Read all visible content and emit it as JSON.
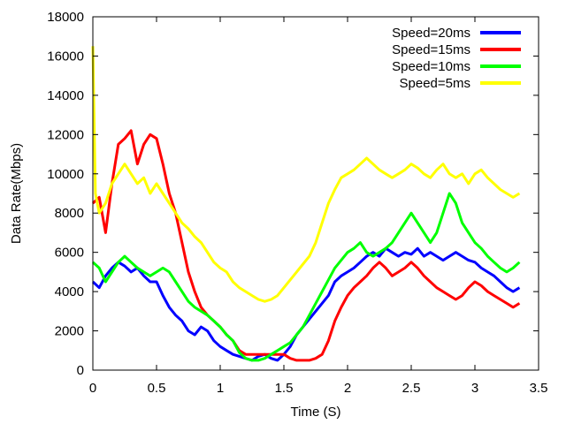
{
  "chart_data": {
    "type": "line",
    "title": "",
    "xlabel": "Time (S)",
    "ylabel": "Data Rate(Mbps)",
    "xlim": [
      0,
      3.5
    ],
    "ylim": [
      0,
      18000
    ],
    "x_ticks": [
      "0",
      "0.5",
      "1",
      "1.5",
      "2",
      "2.5",
      "3",
      "3.5"
    ],
    "y_ticks": [
      "0",
      "2000",
      "4000",
      "6000",
      "8000",
      "10000",
      "12000",
      "14000",
      "16000",
      "18000"
    ],
    "grid": false,
    "legend_position": "top-right",
    "series": [
      {
        "name": "Speed=20ms",
        "color": "#0000ff",
        "x": [
          0.0,
          0.05,
          0.1,
          0.15,
          0.2,
          0.25,
          0.3,
          0.35,
          0.4,
          0.45,
          0.5,
          0.55,
          0.6,
          0.65,
          0.7,
          0.75,
          0.8,
          0.85,
          0.9,
          0.95,
          1.0,
          1.05,
          1.1,
          1.15,
          1.2,
          1.25,
          1.3,
          1.35,
          1.4,
          1.45,
          1.5,
          1.55,
          1.6,
          1.65,
          1.7,
          1.75,
          1.8,
          1.85,
          1.9,
          1.95,
          2.0,
          2.05,
          2.1,
          2.15,
          2.2,
          2.25,
          2.3,
          2.35,
          2.4,
          2.45,
          2.5,
          2.55,
          2.6,
          2.65,
          2.7,
          2.75,
          2.8,
          2.85,
          2.9,
          2.95,
          3.0,
          3.05,
          3.1,
          3.15,
          3.2,
          3.25,
          3.3,
          3.35
        ],
        "y": [
          4500,
          4200,
          4800,
          5200,
          5500,
          5300,
          5000,
          5200,
          4800,
          4500,
          4500,
          3800,
          3200,
          2800,
          2500,
          2000,
          1800,
          2200,
          2000,
          1500,
          1200,
          1000,
          800,
          700,
          600,
          500,
          700,
          800,
          600,
          500,
          800,
          1200,
          1800,
          2200,
          2600,
          3000,
          3400,
          3800,
          4500,
          4800,
          5000,
          5200,
          5500,
          5800,
          6000,
          5800,
          6200,
          6000,
          5800,
          6000,
          5900,
          6200,
          5800,
          6000,
          5800,
          5600,
          5800,
          6000,
          5800,
          5600,
          5500,
          5200,
          5000,
          4800,
          4500,
          4200,
          4000,
          4200
        ]
      },
      {
        "name": "Speed=15ms",
        "color": "#ff0000",
        "x": [
          0.0,
          0.05,
          0.1,
          0.15,
          0.2,
          0.25,
          0.3,
          0.35,
          0.4,
          0.45,
          0.5,
          0.55,
          0.6,
          0.65,
          0.7,
          0.75,
          0.8,
          0.85,
          0.9,
          0.95,
          1.0,
          1.05,
          1.1,
          1.15,
          1.2,
          1.25,
          1.3,
          1.35,
          1.4,
          1.45,
          1.5,
          1.55,
          1.6,
          1.65,
          1.7,
          1.75,
          1.8,
          1.85,
          1.9,
          1.95,
          2.0,
          2.05,
          2.1,
          2.15,
          2.2,
          2.25,
          2.3,
          2.35,
          2.4,
          2.45,
          2.5,
          2.55,
          2.6,
          2.65,
          2.7,
          2.75,
          2.8,
          2.85,
          2.9,
          2.95,
          3.0,
          3.05,
          3.1,
          3.15,
          3.2,
          3.25,
          3.3,
          3.35
        ],
        "y": [
          8500,
          8800,
          7000,
          9500,
          11500,
          11800,
          12200,
          10500,
          11500,
          12000,
          11800,
          10500,
          9000,
          8000,
          6500,
          5000,
          4000,
          3200,
          2800,
          2500,
          2200,
          1800,
          1500,
          1000,
          800,
          800,
          800,
          800,
          800,
          800,
          800,
          600,
          500,
          500,
          500,
          600,
          800,
          1500,
          2500,
          3200,
          3800,
          4200,
          4500,
          4800,
          5200,
          5500,
          5200,
          4800,
          5000,
          5200,
          5500,
          5200,
          4800,
          4500,
          4200,
          4000,
          3800,
          3600,
          3800,
          4200,
          4500,
          4300,
          4000,
          3800,
          3600,
          3400,
          3200,
          3400
        ]
      },
      {
        "name": "Speed=10ms",
        "color": "#00ff00",
        "x": [
          0.0,
          0.05,
          0.1,
          0.15,
          0.2,
          0.25,
          0.3,
          0.35,
          0.4,
          0.45,
          0.5,
          0.55,
          0.6,
          0.65,
          0.7,
          0.75,
          0.8,
          0.85,
          0.9,
          0.95,
          1.0,
          1.05,
          1.1,
          1.15,
          1.2,
          1.25,
          1.3,
          1.35,
          1.4,
          1.45,
          1.5,
          1.55,
          1.6,
          1.65,
          1.7,
          1.75,
          1.8,
          1.85,
          1.9,
          1.95,
          2.0,
          2.05,
          2.1,
          2.15,
          2.2,
          2.25,
          2.3,
          2.35,
          2.4,
          2.45,
          2.5,
          2.55,
          2.6,
          2.65,
          2.7,
          2.75,
          2.8,
          2.85,
          2.9,
          2.95,
          3.0,
          3.05,
          3.1,
          3.15,
          3.2,
          3.25,
          3.3,
          3.35
        ],
        "y": [
          5500,
          5200,
          4500,
          5000,
          5500,
          5800,
          5500,
          5200,
          5000,
          4800,
          5000,
          5200,
          5000,
          4500,
          4000,
          3500,
          3200,
          3000,
          2800,
          2500,
          2200,
          1800,
          1500,
          900,
          600,
          500,
          500,
          600,
          800,
          1000,
          1200,
          1400,
          1800,
          2200,
          2800,
          3400,
          4000,
          4600,
          5200,
          5600,
          6000,
          6200,
          6500,
          6000,
          5800,
          6000,
          6200,
          6500,
          7000,
          7500,
          8000,
          7500,
          7000,
          6500,
          7000,
          8000,
          9000,
          8500,
          7500,
          7000,
          6500,
          6200,
          5800,
          5500,
          5200,
          5000,
          5200,
          5500
        ]
      },
      {
        "name": "Speed=5ms",
        "color": "#ffff00",
        "x": [
          0.0,
          0.02,
          0.05,
          0.1,
          0.15,
          0.2,
          0.25,
          0.3,
          0.35,
          0.4,
          0.45,
          0.5,
          0.55,
          0.6,
          0.65,
          0.7,
          0.75,
          0.8,
          0.85,
          0.9,
          0.95,
          1.0,
          1.05,
          1.1,
          1.15,
          1.2,
          1.25,
          1.3,
          1.35,
          1.4,
          1.45,
          1.5,
          1.55,
          1.6,
          1.65,
          1.7,
          1.75,
          1.8,
          1.85,
          1.9,
          1.95,
          2.0,
          2.05,
          2.1,
          2.15,
          2.2,
          2.25,
          2.3,
          2.35,
          2.4,
          2.45,
          2.5,
          2.55,
          2.6,
          2.65,
          2.7,
          2.75,
          2.8,
          2.85,
          2.9,
          2.95,
          3.0,
          3.05,
          3.1,
          3.15,
          3.2,
          3.25,
          3.3,
          3.35
        ],
        "y": [
          16500,
          9000,
          8000,
          8500,
          9500,
          10000,
          10500,
          10000,
          9500,
          9800,
          9000,
          9500,
          9000,
          8500,
          8000,
          7500,
          7200,
          6800,
          6500,
          6000,
          5500,
          5200,
          5000,
          4500,
          4200,
          4000,
          3800,
          3600,
          3500,
          3600,
          3800,
          4200,
          4600,
          5000,
          5400,
          5800,
          6500,
          7500,
          8500,
          9200,
          9800,
          10000,
          10200,
          10500,
          10800,
          10500,
          10200,
          10000,
          9800,
          10000,
          10200,
          10500,
          10300,
          10000,
          9800,
          10200,
          10500,
          10000,
          9800,
          10000,
          9500,
          10000,
          10200,
          9800,
          9500,
          9200,
          9000,
          8800,
          9000
        ]
      }
    ]
  }
}
